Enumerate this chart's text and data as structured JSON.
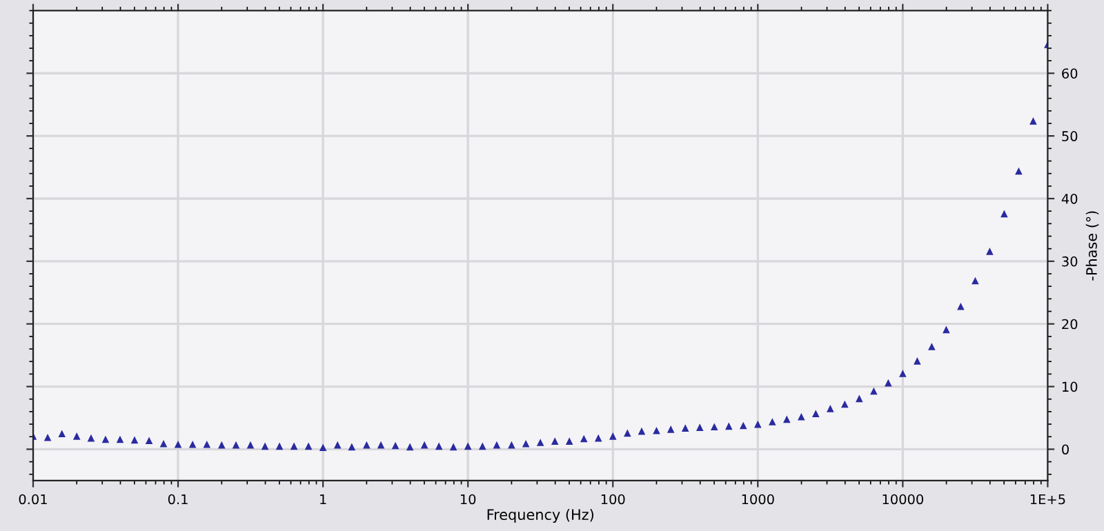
{
  "chart_data": {
    "type": "scatter",
    "xlabel": "Frequency (Hz)",
    "ylabel": "-Phase (°)",
    "x": [
      0.01,
      0.0126,
      0.0158,
      0.02,
      0.0251,
      0.0316,
      0.0398,
      0.0501,
      0.0631,
      0.0794,
      0.1,
      0.126,
      0.158,
      0.2,
      0.251,
      0.316,
      0.398,
      0.501,
      0.631,
      0.794,
      1,
      1.26,
      1.58,
      2,
      2.51,
      3.16,
      3.98,
      5.01,
      6.31,
      7.94,
      10,
      12.6,
      15.8,
      20,
      25.1,
      31.6,
      39.8,
      50.1,
      63.1,
      79.4,
      100,
      126,
      158,
      200,
      251,
      316,
      398,
      501,
      631,
      794,
      1000,
      1259,
      1585,
      1995,
      2512,
      3162,
      3981,
      5012,
      6310,
      7943,
      10000,
      12589,
      15849,
      19953,
      25119,
      31623,
      39811,
      50119,
      63096,
      79433,
      100000
    ],
    "series": [
      {
        "color": "#2b2ba0",
        "values": [
          2.0,
          1.8,
          2.4,
          2.0,
          1.7,
          1.5,
          1.5,
          1.4,
          1.3,
          0.8,
          0.7,
          0.7,
          0.7,
          0.6,
          0.6,
          0.6,
          0.4,
          0.4,
          0.4,
          0.4,
          0.2,
          0.6,
          0.3,
          0.6,
          0.6,
          0.5,
          0.3,
          0.6,
          0.4,
          0.3,
          0.4,
          0.4,
          0.6,
          0.6,
          0.8,
          1.0,
          1.2,
          1.2,
          1.6,
          1.7,
          2.0,
          2.5,
          2.8,
          2.9,
          3.1,
          3.3,
          3.4,
          3.5,
          3.6,
          3.7,
          3.9,
          4.3,
          4.7,
          5.1,
          5.6,
          6.4,
          7.1,
          8.0,
          9.2,
          10.5,
          12.0,
          14.0,
          16.3,
          19.0,
          22.7,
          26.8,
          31.5,
          37.5,
          44.3,
          52.3,
          64.5
        ]
      }
    ],
    "log": "x",
    "xlim": [
      0.01,
      100000
    ],
    "xticks": [
      0.01,
      0.1,
      1,
      10,
      100,
      1000,
      10000,
      {
        "value": 100000,
        "label": "1E+5"
      }
    ],
    "ylim": [
      -5,
      70
    ],
    "yticks": [
      0,
      10,
      20,
      30,
      40,
      50,
      60
    ],
    "grid": true,
    "marker": "triangle"
  }
}
